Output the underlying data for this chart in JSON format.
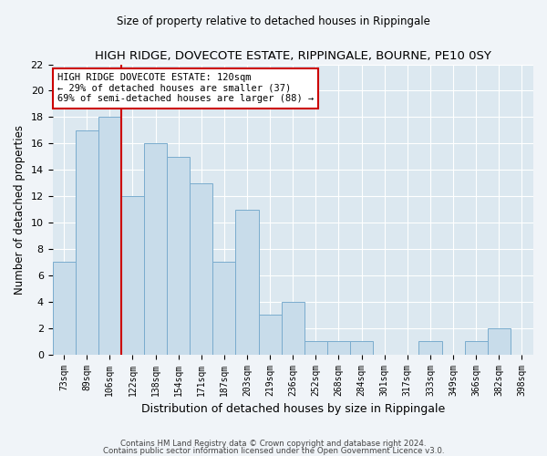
{
  "title": "HIGH RIDGE, DOVECOTE ESTATE, RIPPINGALE, BOURNE, PE10 0SY",
  "subtitle": "Size of property relative to detached houses in Rippingale",
  "xlabel": "Distribution of detached houses by size in Rippingale",
  "ylabel": "Number of detached properties",
  "bar_labels": [
    "73sqm",
    "89sqm",
    "106sqm",
    "122sqm",
    "138sqm",
    "154sqm",
    "171sqm",
    "187sqm",
    "203sqm",
    "219sqm",
    "236sqm",
    "252sqm",
    "268sqm",
    "284sqm",
    "301sqm",
    "317sqm",
    "333sqm",
    "349sqm",
    "366sqm",
    "382sqm",
    "398sqm"
  ],
  "bar_values": [
    7,
    17,
    18,
    12,
    16,
    15,
    13,
    7,
    11,
    3,
    4,
    1,
    1,
    1,
    0,
    0,
    1,
    0,
    1,
    2,
    0
  ],
  "bar_color": "#c8dcea",
  "bar_edge_color": "#7aacce",
  "vline_color": "#cc0000",
  "vline_x_idx": 2.5,
  "annotation_text": "HIGH RIDGE DOVECOTE ESTATE: 120sqm\n← 29% of detached houses are smaller (37)\n69% of semi-detached houses are larger (88) →",
  "annotation_box_color": "white",
  "annotation_box_edge": "#cc0000",
  "ylim": [
    0,
    22
  ],
  "yticks": [
    0,
    2,
    4,
    6,
    8,
    10,
    12,
    14,
    16,
    18,
    20,
    22
  ],
  "footer_line1": "Contains HM Land Registry data © Crown copyright and database right 2024.",
  "footer_line2": "Contains public sector information licensed under the Open Government Licence v3.0.",
  "bg_color": "#f0f4f8",
  "plot_bg_color": "#dce8f0",
  "grid_color": "#ffffff"
}
